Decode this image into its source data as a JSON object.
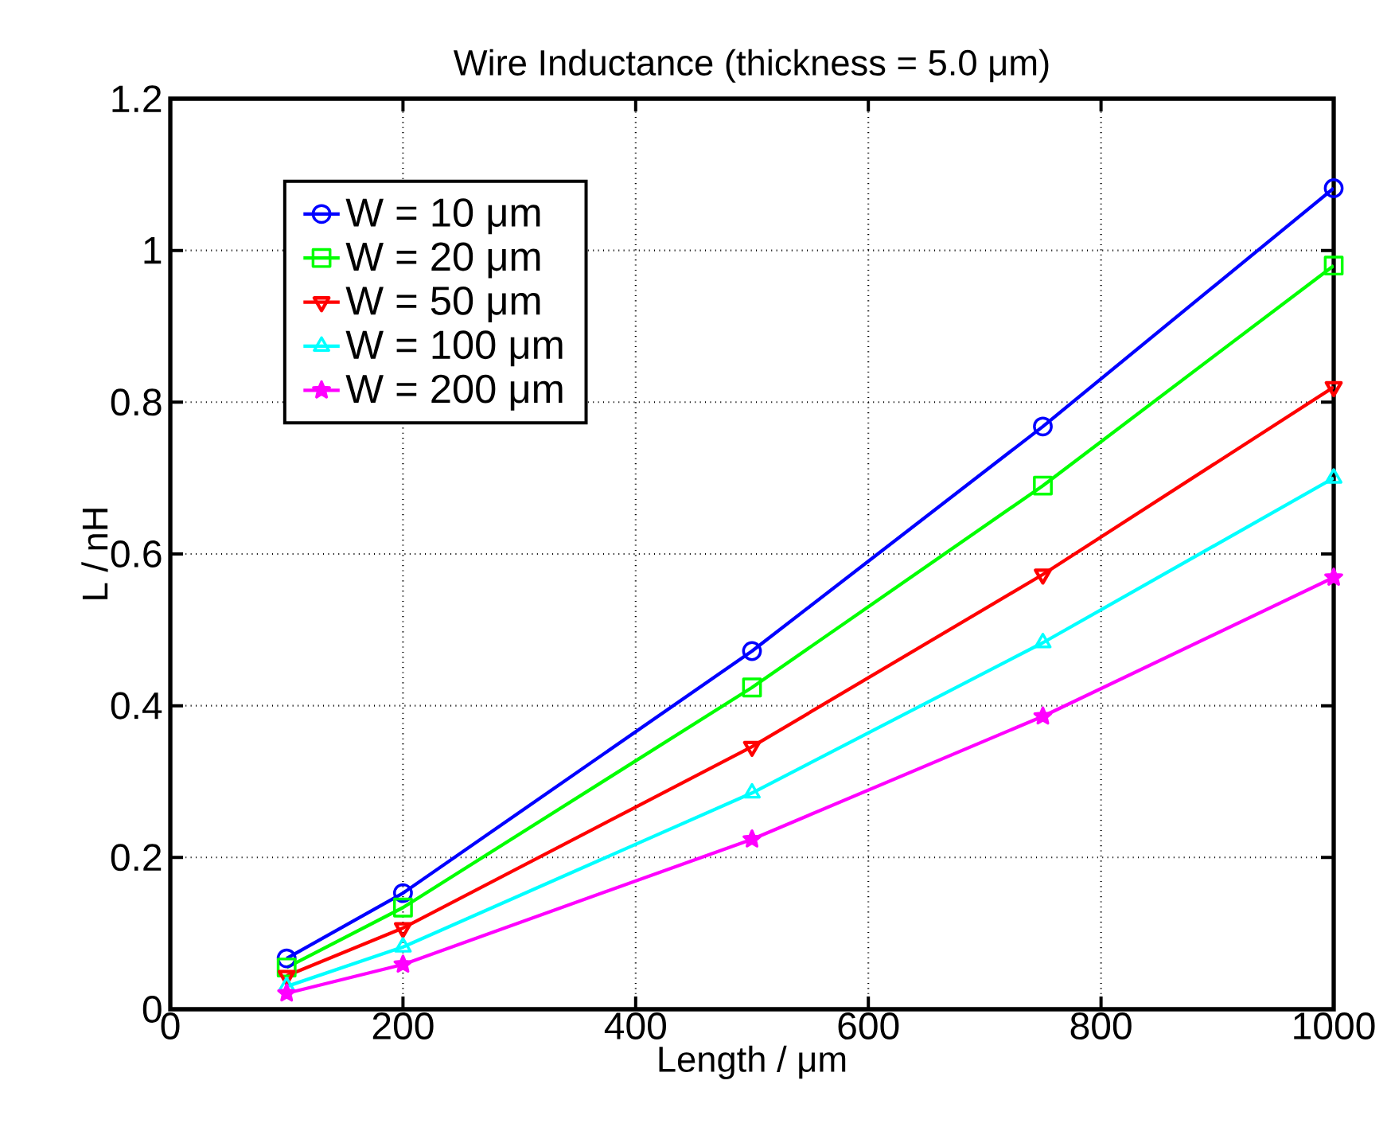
{
  "chart_data": {
    "type": "line",
    "title": "Wire Inductance (thickness = 5.0 μm)",
    "xlabel": "Length / μm",
    "ylabel": "L / nH",
    "x": [
      100,
      200,
      500,
      750,
      1000
    ],
    "series": [
      {
        "name": "W = 10 μm",
        "color": "#0000ff",
        "marker": "circle",
        "values": [
          0.067,
          0.153,
          0.472,
          0.768,
          1.082
        ]
      },
      {
        "name": "W = 20 μm",
        "color": "#00ff00",
        "marker": "square",
        "values": [
          0.055,
          0.134,
          0.424,
          0.69,
          0.98
        ]
      },
      {
        "name": "W = 50 μm",
        "color": "#ff0000",
        "marker": "triangle-down",
        "values": [
          0.044,
          0.107,
          0.346,
          0.573,
          0.82
        ]
      },
      {
        "name": "W = 100 μm",
        "color": "#00ffff",
        "marker": "triangle",
        "values": [
          0.03,
          0.082,
          0.285,
          0.483,
          0.7
        ]
      },
      {
        "name": "W = 200 μm",
        "color": "#ff00ff",
        "marker": "star",
        "values": [
          0.021,
          0.059,
          0.224,
          0.386,
          0.569
        ]
      }
    ],
    "xlim": [
      0,
      1000
    ],
    "xticks": [
      0,
      200,
      400,
      600,
      800,
      1000
    ],
    "ylim": [
      0,
      1.2
    ],
    "yticks": [
      0,
      0.2,
      0.4,
      0.6,
      0.8,
      1,
      1.2
    ],
    "grid": true,
    "legend": "top left",
    "line_style": "solid"
  }
}
